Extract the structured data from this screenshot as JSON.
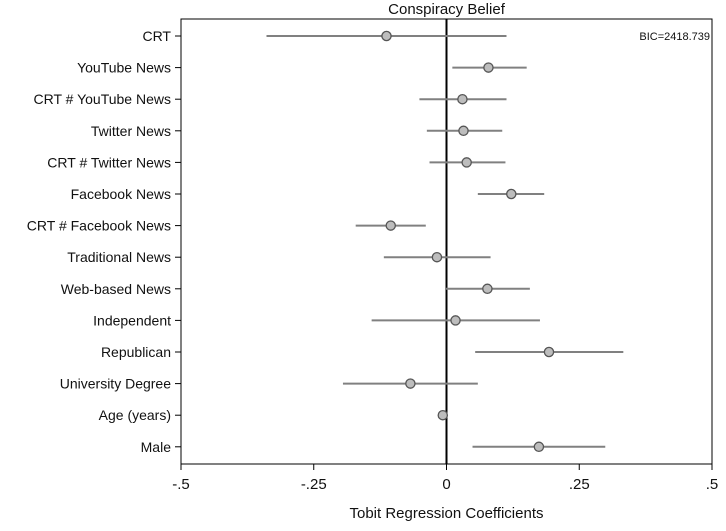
{
  "chart_data": {
    "type": "coefficient-plot",
    "title": "Conspiracy Belief",
    "xlabel": "Tobit Regression Coefficients",
    "annotation": "BIC=2418.739",
    "xlim": [
      -0.5,
      0.5
    ],
    "xticks": [
      {
        "value": -0.5,
        "label": "-.5"
      },
      {
        "value": -0.25,
        "label": "-.25"
      },
      {
        "value": 0,
        "label": "0"
      },
      {
        "value": 0.25,
        "label": ".25"
      },
      {
        "value": 0.5,
        "label": ".5"
      }
    ],
    "reference_line": 0,
    "grid": false,
    "colors": {
      "ci": "#808080",
      "marker_fill": "#bdbdbd",
      "marker_stroke": "#555555",
      "axis": "#000000"
    },
    "categories": [
      "CRT",
      "YouTube News",
      "CRT # YouTube News",
      "Twitter News",
      "CRT # Twitter News",
      "Facebook News",
      "CRT # Facebook News",
      "Traditional News",
      "Web-based News",
      "Independent",
      "Republican",
      "University Degree",
      "Age (years)",
      "Male"
    ],
    "estimates": [
      -0.113,
      0.079,
      0.03,
      0.032,
      0.038,
      0.122,
      -0.105,
      -0.018,
      0.077,
      0.017,
      0.193,
      -0.068,
      -0.007,
      0.174
    ],
    "ci_low": [
      -0.339,
      0.011,
      -0.051,
      -0.037,
      -0.032,
      0.059,
      -0.171,
      -0.118,
      -0.001,
      -0.141,
      0.054,
      -0.195,
      -0.012,
      0.049
    ],
    "ci_high": [
      0.113,
      0.151,
      0.113,
      0.105,
      0.111,
      0.184,
      -0.039,
      0.083,
      0.157,
      0.176,
      0.333,
      0.059,
      -0.002,
      0.299
    ]
  }
}
